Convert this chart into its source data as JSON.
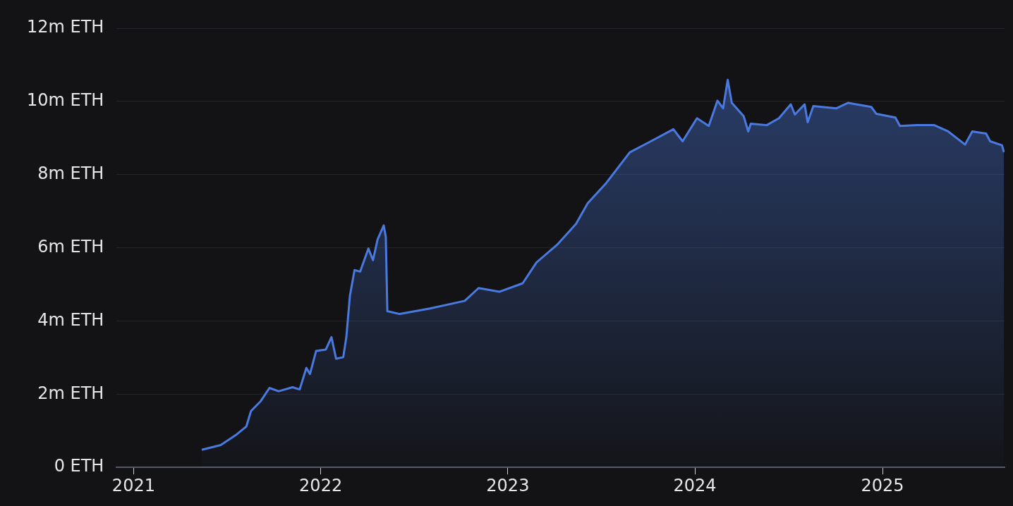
{
  "chart_data": {
    "type": "area",
    "color": "#4a7ae0",
    "grid": "y",
    "legend": false,
    "marker": "none",
    "line_style": "solid",
    "x": [
      "2021-05-14",
      "2021-06-20",
      "2021-07-21",
      "2021-08-09",
      "2021-08-18",
      "2021-09-06",
      "2021-09-23",
      "2021-10-11",
      "2021-11-07",
      "2021-11-21",
      "2021-12-04",
      "2021-12-11",
      "2021-12-23",
      "2022-01-11",
      "2022-01-22",
      "2022-01-31",
      "2022-02-14",
      "2022-02-20",
      "2022-02-27",
      "2022-03-08",
      "2022-03-19",
      "2022-04-04",
      "2022-04-13",
      "2022-04-22",
      "2022-05-04",
      "2022-05-08",
      "2022-05-11",
      "2022-06-04",
      "2022-08-02",
      "2022-10-09",
      "2022-11-05",
      "2022-12-16",
      "2023-01-30",
      "2023-02-26",
      "2023-04-07",
      "2023-05-14",
      "2023-06-06",
      "2023-07-12",
      "2023-08-27",
      "2023-10-07",
      "2023-11-20",
      "2023-12-08",
      "2024-01-05",
      "2024-01-28",
      "2024-02-14",
      "2024-02-25",
      "2024-03-05",
      "2024-03-13",
      "2024-04-05",
      "2024-04-14",
      "2024-04-19",
      "2024-05-20",
      "2024-06-13",
      "2024-07-06",
      "2024-07-14",
      "2024-08-02",
      "2024-08-08",
      "2024-08-19",
      "2024-10-03",
      "2024-10-26",
      "2024-12-10",
      "2024-12-20",
      "2025-01-26",
      "2025-02-04",
      "2025-03-08",
      "2025-04-12",
      "2025-05-09",
      "2025-06-11",
      "2025-06-25",
      "2025-07-22",
      "2025-07-30",
      "2025-08-22",
      "2025-08-26"
    ],
    "values": [
      0.48,
      0.61,
      0.9,
      1.12,
      1.54,
      1.81,
      2.17,
      2.08,
      2.19,
      2.13,
      2.72,
      2.55,
      3.18,
      3.22,
      3.56,
      2.97,
      3.01,
      3.56,
      4.69,
      5.39,
      5.35,
      5.98,
      5.66,
      6.23,
      6.61,
      6.29,
      4.27,
      4.19,
      4.34,
      4.55,
      4.9,
      4.8,
      5.03,
      5.6,
      6.08,
      6.65,
      7.22,
      7.77,
      8.61,
      8.91,
      9.24,
      8.91,
      9.54,
      9.33,
      10.02,
      9.81,
      10.59,
      9.96,
      9.6,
      9.18,
      9.39,
      9.35,
      9.54,
      9.92,
      9.64,
      9.92,
      9.43,
      9.87,
      9.81,
      9.96,
      9.85,
      9.66,
      9.56,
      9.33,
      9.35,
      9.35,
      9.18,
      8.82,
      9.18,
      9.12,
      8.91,
      8.8,
      8.61
    ],
    "xlim": [
      "2020-11-29",
      "2025-08-27"
    ],
    "xticks": [
      "2021",
      "2022",
      "2023",
      "2024",
      "2025"
    ],
    "ylim": [
      0,
      12
    ],
    "yticks": [
      {
        "value": 0,
        "label": "0 ETH"
      },
      {
        "value": 2,
        "label": "2m ETH"
      },
      {
        "value": 4,
        "label": "4m ETH"
      },
      {
        "value": 6,
        "label": "6m ETH"
      },
      {
        "value": 8,
        "label": "8m ETH"
      },
      {
        "value": 10,
        "label": "10m ETH"
      },
      {
        "value": 12,
        "label": "12m ETH"
      }
    ]
  }
}
